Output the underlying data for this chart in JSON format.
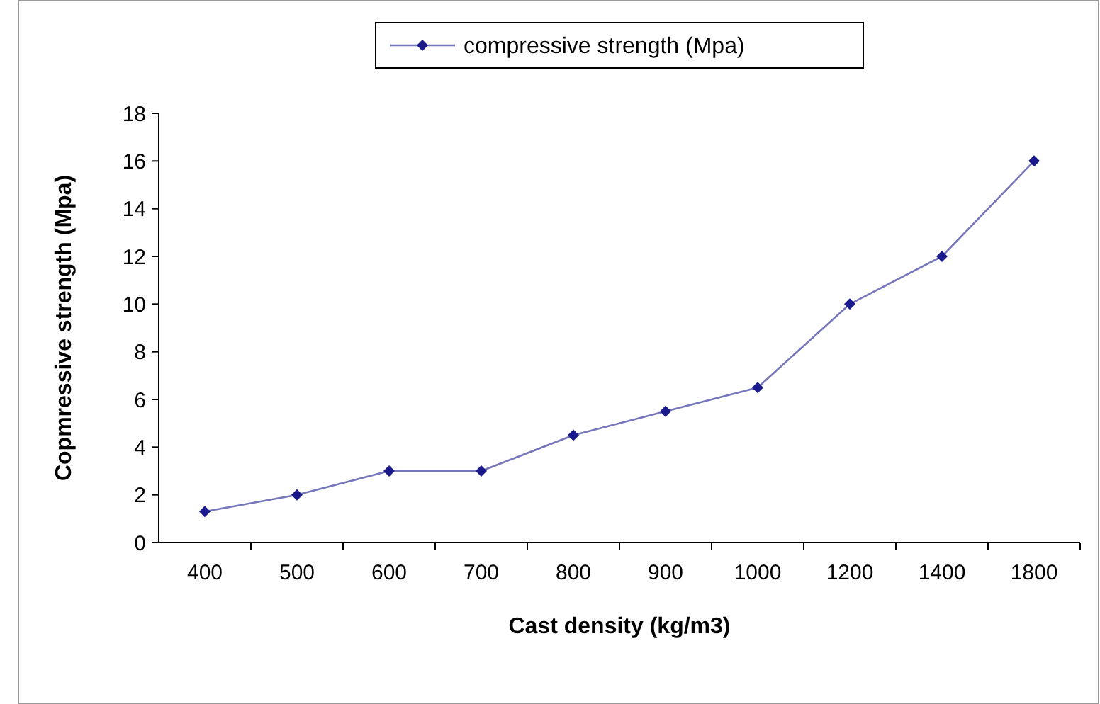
{
  "chart_data": {
    "type": "line",
    "xlabel": "Cast density (kg/m3)",
    "ylabel": "Copmressive strength (Mpa)",
    "categories": [
      "400",
      "500",
      "600",
      "700",
      "800",
      "900",
      "1000",
      "1200",
      "1400",
      "1800"
    ],
    "series": [
      {
        "name": "compressive strength (Mpa)",
        "color": "#1a1a8c",
        "values": [
          1.3,
          2,
          3,
          3,
          4.5,
          5.5,
          6.5,
          10,
          12,
          16
        ]
      }
    ],
    "ylim": [
      0,
      18
    ],
    "yticks": [
      0,
      2,
      4,
      6,
      8,
      10,
      12,
      14,
      16,
      18
    ],
    "grid": false,
    "legend": "top",
    "marker": "diamond",
    "line_style": "solid"
  }
}
